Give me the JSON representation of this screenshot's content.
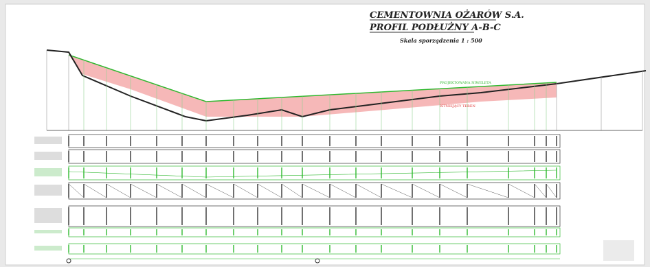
{
  "header": {
    "title": "CEMENTOWNIA OŻARÓW S.A.",
    "subtitle": "PROFIL PODŁUŻNY A-B-C",
    "scale": "Skala sporządzenia 1 : 500"
  },
  "annotations": {
    "design_line": "PROJEKTOWANA NIWELETA",
    "existing_terrain": "ISTNIEJĄCY TEREN"
  }
}
